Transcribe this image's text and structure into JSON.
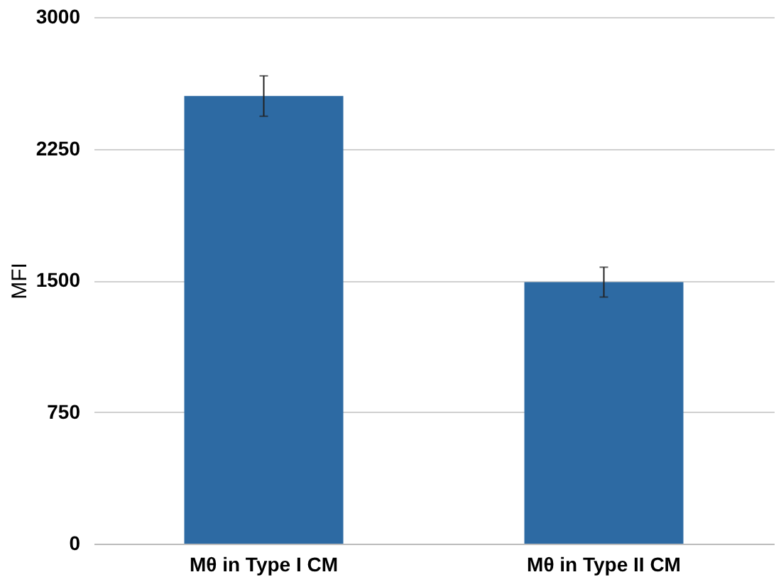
{
  "chart_data": {
    "type": "bar",
    "ylabel": "MFI",
    "categories": [
      "Mθ in Type I CM",
      "Mθ in Type II CM"
    ],
    "values": [
      2550,
      1490
    ],
    "errors": [
      115,
      85
    ],
    "color": "#2d6aa3",
    "ylim": [
      0,
      3000
    ],
    "yticks": [
      0,
      750,
      1500,
      2250,
      3000
    ],
    "grid": "y"
  }
}
